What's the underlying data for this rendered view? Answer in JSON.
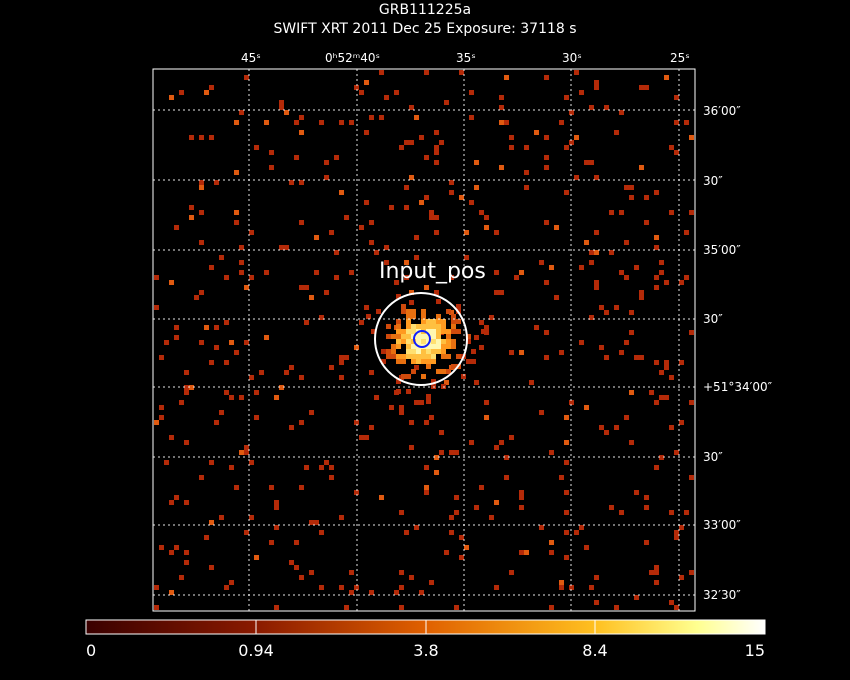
{
  "header": {
    "title": "GRB111225a",
    "subtitle": "SWIFT XRT   2011 Dec 25    Exposure: 37118 s"
  },
  "image": {
    "source_label": "Input_pos",
    "ra_ticks": [
      "45ˢ",
      "0ʰ52ᵐ40ˢ",
      "35ˢ",
      "30ˢ",
      "25ˢ"
    ],
    "dec_ticks": [
      "36′00″",
      "30″",
      "35′00″",
      "30″",
      "+51°34′00″",
      "30″",
      "33′00″",
      "32′30″"
    ]
  },
  "colorbar": {
    "ticks": [
      "0",
      "0.94",
      "3.8",
      "8.4",
      "15"
    ]
  }
}
